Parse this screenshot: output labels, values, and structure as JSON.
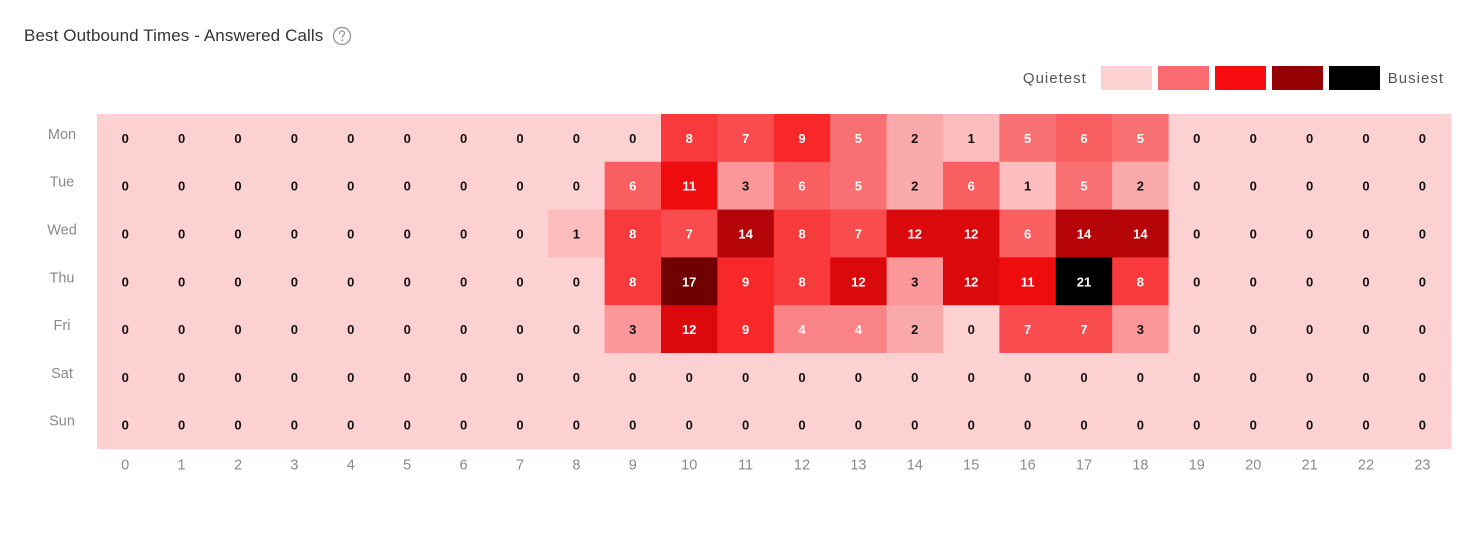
{
  "header": {
    "title": "Best Outbound Times - Answered Calls",
    "help_icon": "help-circle-icon"
  },
  "legend": {
    "quietest_label": "Quietest",
    "busiest_label": "Busiest",
    "colors": [
      "#fdd0d2",
      "#f96b6e",
      "#f70d0f",
      "#940003",
      "#000000"
    ]
  },
  "chart_data": {
    "type": "heatmap",
    "title": "Best Outbound Times - Answered Calls",
    "xlabel": "",
    "ylabel": "",
    "x": [
      "0",
      "1",
      "2",
      "3",
      "4",
      "5",
      "6",
      "7",
      "8",
      "9",
      "10",
      "11",
      "12",
      "13",
      "14",
      "15",
      "16",
      "17",
      "18",
      "19",
      "20",
      "21",
      "22",
      "23"
    ],
    "y": [
      "Mon",
      "Tue",
      "Wed",
      "Thu",
      "Fri",
      "Sat",
      "Sun"
    ],
    "values": [
      [
        0,
        0,
        0,
        0,
        0,
        0,
        0,
        0,
        0,
        0,
        8,
        7,
        9,
        5,
        2,
        1,
        5,
        6,
        5,
        0,
        0,
        0,
        0,
        0
      ],
      [
        0,
        0,
        0,
        0,
        0,
        0,
        0,
        0,
        0,
        6,
        11,
        3,
        6,
        5,
        2,
        6,
        1,
        5,
        2,
        0,
        0,
        0,
        0,
        0
      ],
      [
        0,
        0,
        0,
        0,
        0,
        0,
        0,
        0,
        1,
        8,
        7,
        14,
        8,
        7,
        12,
        12,
        6,
        14,
        14,
        0,
        0,
        0,
        0,
        0
      ],
      [
        0,
        0,
        0,
        0,
        0,
        0,
        0,
        0,
        0,
        8,
        17,
        9,
        8,
        12,
        3,
        12,
        11,
        21,
        8,
        0,
        0,
        0,
        0,
        0
      ],
      [
        0,
        0,
        0,
        0,
        0,
        0,
        0,
        0,
        0,
        3,
        12,
        9,
        4,
        4,
        2,
        0,
        7,
        7,
        3,
        0,
        0,
        0,
        0,
        0
      ],
      [
        0,
        0,
        0,
        0,
        0,
        0,
        0,
        0,
        0,
        0,
        0,
        0,
        0,
        0,
        0,
        0,
        0,
        0,
        0,
        0,
        0,
        0,
        0,
        0
      ],
      [
        0,
        0,
        0,
        0,
        0,
        0,
        0,
        0,
        0,
        0,
        0,
        0,
        0,
        0,
        0,
        0,
        0,
        0,
        0,
        0,
        0,
        0,
        0,
        0
      ]
    ],
    "color_scale": [
      "#fdd0d2",
      "#f96b6e",
      "#f70d0f",
      "#940003",
      "#000000"
    ],
    "legend_position": "top-right",
    "grid": false
  }
}
